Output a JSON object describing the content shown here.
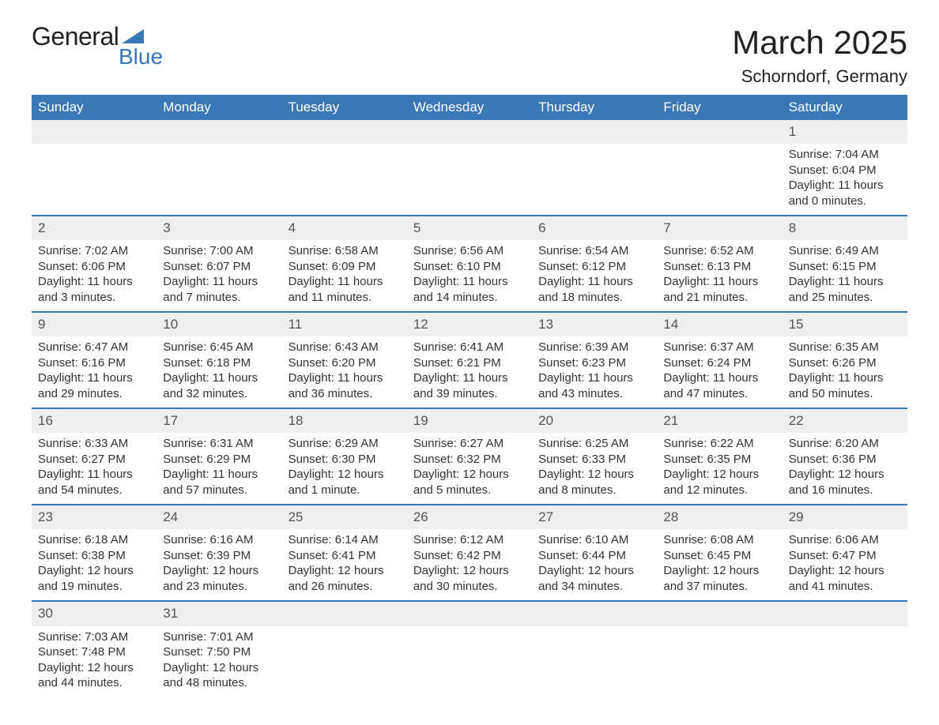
{
  "logo": {
    "general": "General",
    "blue": "Blue"
  },
  "title": "March 2025",
  "location": "Schorndorf, Germany",
  "colors": {
    "header_bg": "#3a78b5",
    "header_fg": "#ffffff",
    "daynum_bg": "#efefef",
    "row_border": "#3a78b5",
    "body_fg": "#333333",
    "title_fg": "#222222"
  },
  "fonts": {
    "title_pt": 42,
    "location_pt": 22,
    "header_pt": 17,
    "daynum_pt": 17,
    "body_pt": 15
  },
  "day_names": [
    "Sunday",
    "Monday",
    "Tuesday",
    "Wednesday",
    "Thursday",
    "Friday",
    "Saturday"
  ],
  "weeks": [
    [
      null,
      null,
      null,
      null,
      null,
      null,
      {
        "n": "1",
        "sunrise": "Sunrise: 7:04 AM",
        "sunset": "Sunset: 6:04 PM",
        "daylight": "Daylight: 11 hours and 0 minutes."
      }
    ],
    [
      {
        "n": "2",
        "sunrise": "Sunrise: 7:02 AM",
        "sunset": "Sunset: 6:06 PM",
        "daylight": "Daylight: 11 hours and 3 minutes."
      },
      {
        "n": "3",
        "sunrise": "Sunrise: 7:00 AM",
        "sunset": "Sunset: 6:07 PM",
        "daylight": "Daylight: 11 hours and 7 minutes."
      },
      {
        "n": "4",
        "sunrise": "Sunrise: 6:58 AM",
        "sunset": "Sunset: 6:09 PM",
        "daylight": "Daylight: 11 hours and 11 minutes."
      },
      {
        "n": "5",
        "sunrise": "Sunrise: 6:56 AM",
        "sunset": "Sunset: 6:10 PM",
        "daylight": "Daylight: 11 hours and 14 minutes."
      },
      {
        "n": "6",
        "sunrise": "Sunrise: 6:54 AM",
        "sunset": "Sunset: 6:12 PM",
        "daylight": "Daylight: 11 hours and 18 minutes."
      },
      {
        "n": "7",
        "sunrise": "Sunrise: 6:52 AM",
        "sunset": "Sunset: 6:13 PM",
        "daylight": "Daylight: 11 hours and 21 minutes."
      },
      {
        "n": "8",
        "sunrise": "Sunrise: 6:49 AM",
        "sunset": "Sunset: 6:15 PM",
        "daylight": "Daylight: 11 hours and 25 minutes."
      }
    ],
    [
      {
        "n": "9",
        "sunrise": "Sunrise: 6:47 AM",
        "sunset": "Sunset: 6:16 PM",
        "daylight": "Daylight: 11 hours and 29 minutes."
      },
      {
        "n": "10",
        "sunrise": "Sunrise: 6:45 AM",
        "sunset": "Sunset: 6:18 PM",
        "daylight": "Daylight: 11 hours and 32 minutes."
      },
      {
        "n": "11",
        "sunrise": "Sunrise: 6:43 AM",
        "sunset": "Sunset: 6:20 PM",
        "daylight": "Daylight: 11 hours and 36 minutes."
      },
      {
        "n": "12",
        "sunrise": "Sunrise: 6:41 AM",
        "sunset": "Sunset: 6:21 PM",
        "daylight": "Daylight: 11 hours and 39 minutes."
      },
      {
        "n": "13",
        "sunrise": "Sunrise: 6:39 AM",
        "sunset": "Sunset: 6:23 PM",
        "daylight": "Daylight: 11 hours and 43 minutes."
      },
      {
        "n": "14",
        "sunrise": "Sunrise: 6:37 AM",
        "sunset": "Sunset: 6:24 PM",
        "daylight": "Daylight: 11 hours and 47 minutes."
      },
      {
        "n": "15",
        "sunrise": "Sunrise: 6:35 AM",
        "sunset": "Sunset: 6:26 PM",
        "daylight": "Daylight: 11 hours and 50 minutes."
      }
    ],
    [
      {
        "n": "16",
        "sunrise": "Sunrise: 6:33 AM",
        "sunset": "Sunset: 6:27 PM",
        "daylight": "Daylight: 11 hours and 54 minutes."
      },
      {
        "n": "17",
        "sunrise": "Sunrise: 6:31 AM",
        "sunset": "Sunset: 6:29 PM",
        "daylight": "Daylight: 11 hours and 57 minutes."
      },
      {
        "n": "18",
        "sunrise": "Sunrise: 6:29 AM",
        "sunset": "Sunset: 6:30 PM",
        "daylight": "Daylight: 12 hours and 1 minute."
      },
      {
        "n": "19",
        "sunrise": "Sunrise: 6:27 AM",
        "sunset": "Sunset: 6:32 PM",
        "daylight": "Daylight: 12 hours and 5 minutes."
      },
      {
        "n": "20",
        "sunrise": "Sunrise: 6:25 AM",
        "sunset": "Sunset: 6:33 PM",
        "daylight": "Daylight: 12 hours and 8 minutes."
      },
      {
        "n": "21",
        "sunrise": "Sunrise: 6:22 AM",
        "sunset": "Sunset: 6:35 PM",
        "daylight": "Daylight: 12 hours and 12 minutes."
      },
      {
        "n": "22",
        "sunrise": "Sunrise: 6:20 AM",
        "sunset": "Sunset: 6:36 PM",
        "daylight": "Daylight: 12 hours and 16 minutes."
      }
    ],
    [
      {
        "n": "23",
        "sunrise": "Sunrise: 6:18 AM",
        "sunset": "Sunset: 6:38 PM",
        "daylight": "Daylight: 12 hours and 19 minutes."
      },
      {
        "n": "24",
        "sunrise": "Sunrise: 6:16 AM",
        "sunset": "Sunset: 6:39 PM",
        "daylight": "Daylight: 12 hours and 23 minutes."
      },
      {
        "n": "25",
        "sunrise": "Sunrise: 6:14 AM",
        "sunset": "Sunset: 6:41 PM",
        "daylight": "Daylight: 12 hours and 26 minutes."
      },
      {
        "n": "26",
        "sunrise": "Sunrise: 6:12 AM",
        "sunset": "Sunset: 6:42 PM",
        "daylight": "Daylight: 12 hours and 30 minutes."
      },
      {
        "n": "27",
        "sunrise": "Sunrise: 6:10 AM",
        "sunset": "Sunset: 6:44 PM",
        "daylight": "Daylight: 12 hours and 34 minutes."
      },
      {
        "n": "28",
        "sunrise": "Sunrise: 6:08 AM",
        "sunset": "Sunset: 6:45 PM",
        "daylight": "Daylight: 12 hours and 37 minutes."
      },
      {
        "n": "29",
        "sunrise": "Sunrise: 6:06 AM",
        "sunset": "Sunset: 6:47 PM",
        "daylight": "Daylight: 12 hours and 41 minutes."
      }
    ],
    [
      {
        "n": "30",
        "sunrise": "Sunrise: 7:03 AM",
        "sunset": "Sunset: 7:48 PM",
        "daylight": "Daylight: 12 hours and 44 minutes."
      },
      {
        "n": "31",
        "sunrise": "Sunrise: 7:01 AM",
        "sunset": "Sunset: 7:50 PM",
        "daylight": "Daylight: 12 hours and 48 minutes."
      },
      null,
      null,
      null,
      null,
      null
    ]
  ]
}
